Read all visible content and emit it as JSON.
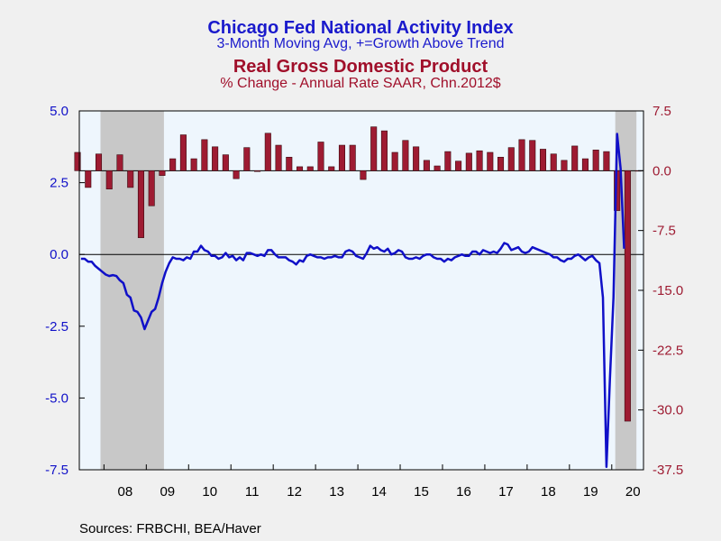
{
  "titles": {
    "line1": "Chicago Fed National Activity Index",
    "line2": "3-Month Moving Avg, +=Growth Above Trend",
    "line3": "Real Gross Domestic Product",
    "line4": "% Change - Annual Rate     SAAR, Chn.2012$"
  },
  "source": "Sources:  FRBCHI, BEA/Haver",
  "colors": {
    "line": "#1010c8",
    "bars": "#9e1b32",
    "recession": "#c8c8c8",
    "plot_bg": "#eef6fd"
  },
  "chart_data": {
    "type": "bar+line",
    "x_tick_labels": [
      "08",
      "09",
      "10",
      "11",
      "12",
      "13",
      "14",
      "15",
      "16",
      "17",
      "18",
      "19",
      "20"
    ],
    "recessions": [
      [
        2007.917,
        2009.417
      ],
      [
        2020.083,
        2020.583
      ]
    ],
    "left_axis": {
      "ticks": [
        "5.0",
        "2.5",
        "0.0",
        "-2.5",
        "-5.0",
        "-7.5"
      ],
      "range": [
        -7.5,
        5.0
      ]
    },
    "right_axis": {
      "ticks": [
        "7.5",
        "0.0",
        "-7.5",
        "-15.0",
        "-22.5",
        "-30.0",
        "-37.5"
      ],
      "range": [
        -37.5,
        7.5
      ]
    },
    "gdp_bars": {
      "axis": "right",
      "quarters": [
        "2007Q2",
        "2007Q3",
        "2007Q4",
        "2008Q1",
        "2008Q2",
        "2008Q3",
        "2008Q4",
        "2009Q1",
        "2009Q2",
        "2009Q3",
        "2009Q4",
        "2010Q1",
        "2010Q2",
        "2010Q3",
        "2010Q4",
        "2011Q1",
        "2011Q2",
        "2011Q3",
        "2011Q4",
        "2012Q1",
        "2012Q2",
        "2012Q3",
        "2012Q4",
        "2013Q1",
        "2013Q2",
        "2013Q3",
        "2013Q4",
        "2014Q1",
        "2014Q2",
        "2014Q3",
        "2014Q4",
        "2015Q1",
        "2015Q2",
        "2015Q3",
        "2015Q4",
        "2016Q1",
        "2016Q2",
        "2016Q3",
        "2016Q4",
        "2017Q1",
        "2017Q2",
        "2017Q3",
        "2017Q4",
        "2018Q1",
        "2018Q2",
        "2018Q3",
        "2018Q4",
        "2019Q1",
        "2019Q2",
        "2019Q3",
        "2019Q4",
        "2020Q1",
        "2020Q2",
        "2020Q3"
      ],
      "values": [
        2.3,
        -2.1,
        2.1,
        -2.3,
        2.0,
        -2.1,
        -8.4,
        -4.4,
        -0.6,
        1.5,
        4.5,
        1.5,
        3.9,
        3.0,
        2.0,
        -1.0,
        2.9,
        -0.1,
        4.7,
        3.2,
        1.7,
        0.5,
        0.5,
        3.6,
        0.5,
        3.2,
        3.2,
        -1.1,
        5.5,
        5.0,
        2.3,
        3.8,
        3.0,
        1.3,
        0.6,
        2.4,
        1.2,
        2.2,
        2.5,
        2.3,
        1.7,
        2.9,
        3.9,
        3.8,
        2.7,
        2.1,
        1.3,
        3.1,
        1.5,
        2.6,
        2.4,
        -5.0,
        -31.4,
        0.0
      ]
    },
    "cfnai_line": {
      "axis": "left",
      "start": "2007-06",
      "values": [
        -0.15,
        -0.15,
        -0.25,
        -0.25,
        -0.4,
        -0.5,
        -0.6,
        -0.7,
        -0.75,
        -0.72,
        -0.75,
        -0.9,
        -1.0,
        -1.4,
        -1.5,
        -1.95,
        -2.0,
        -2.2,
        -2.6,
        -2.3,
        -2.0,
        -1.9,
        -1.5,
        -1.0,
        -0.6,
        -0.3,
        -0.1,
        -0.15,
        -0.15,
        -0.2,
        -0.1,
        -0.15,
        0.1,
        0.1,
        0.3,
        0.15,
        0.1,
        -0.05,
        -0.05,
        -0.15,
        -0.1,
        0.05,
        -0.1,
        -0.05,
        -0.2,
        -0.1,
        -0.2,
        0.05,
        0.05,
        0.0,
        -0.05,
        0.0,
        -0.05,
        0.15,
        0.15,
        0.0,
        -0.1,
        -0.1,
        -0.1,
        -0.2,
        -0.25,
        -0.35,
        -0.2,
        -0.25,
        -0.05,
        0.0,
        -0.05,
        -0.1,
        -0.1,
        -0.15,
        -0.1,
        -0.1,
        -0.05,
        -0.1,
        -0.1,
        0.1,
        0.15,
        0.1,
        -0.05,
        -0.1,
        -0.15,
        0.05,
        0.3,
        0.2,
        0.25,
        0.15,
        0.1,
        0.2,
        0.0,
        0.05,
        0.15,
        0.1,
        -0.1,
        -0.15,
        -0.15,
        -0.1,
        -0.15,
        -0.05,
        0.0,
        0.0,
        -0.1,
        -0.15,
        -0.15,
        -0.25,
        -0.15,
        -0.2,
        -0.1,
        -0.05,
        0.0,
        -0.05,
        -0.05,
        0.1,
        0.1,
        0.0,
        0.15,
        0.1,
        0.05,
        0.1,
        0.05,
        0.2,
        0.4,
        0.35,
        0.15,
        0.2,
        0.25,
        0.1,
        0.05,
        0.1,
        0.25,
        0.2,
        0.15,
        0.1,
        0.05,
        0.0,
        -0.1,
        -0.1,
        -0.2,
        -0.25,
        -0.15,
        -0.15,
        -0.05,
        0.0,
        -0.1,
        -0.2,
        -0.1,
        -0.05,
        -0.2,
        -0.3,
        -1.5,
        -7.4,
        -4.3,
        -1.5,
        4.2,
        3.0,
        0.2
      ]
    }
  }
}
